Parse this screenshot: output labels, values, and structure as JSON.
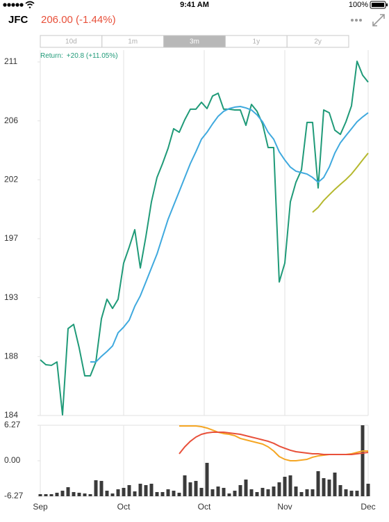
{
  "status_bar": {
    "time": "9:41 AM",
    "battery": "100%"
  },
  "header": {
    "symbol": "JFC",
    "quote": "206.00 (-1.44%)"
  },
  "range_selector": {
    "options": [
      "10d",
      "1m",
      "3m",
      "1y",
      "2y"
    ],
    "selected": 2
  },
  "chart_data": [
    {
      "type": "line",
      "annotation": {
        "label": "Return:",
        "value": "+20.8 (+11.05%)"
      },
      "xlim": [
        0,
        59
      ],
      "ylim": [
        184,
        211
      ],
      "yticks": [
        184,
        {
          "value": 188.5,
          "label": "188"
        },
        193,
        {
          "value": 197.5,
          "label": "197"
        },
        202,
        {
          "value": 206.5,
          "label": "206"
        },
        211
      ],
      "series": [
        {
          "color": "#1f9a78",
          "values": [
            188.25,
            187.88,
            187.83,
            188.09,
            184.05,
            190.64,
            190.96,
            189.16,
            187.03,
            187.03,
            188.09,
            191.39,
            192.88,
            192.18,
            192.88,
            195.64,
            196.86,
            198.19,
            195.27,
            197.66,
            200.32,
            202.18,
            203.24,
            204.41,
            205.9,
            205.63,
            206.59,
            207.39,
            207.39,
            207.92,
            207.44,
            208.4,
            208.61,
            207.39,
            207.39,
            207.33,
            207.33,
            206.16,
            207.76,
            207.23,
            206.27,
            204.46,
            204.46,
            194.2,
            195.64,
            200.32,
            201.81,
            202.76,
            206.38,
            206.38,
            201.38,
            207.33,
            207.12,
            205.79,
            205.47,
            206.43,
            207.65,
            211.05,
            209.99,
            209.46
          ]
        },
        {
          "color": "#3fa9de",
          "values": [
            null,
            null,
            null,
            null,
            null,
            null,
            null,
            null,
            null,
            188.09,
            188.09,
            188.52,
            188.89,
            189.31,
            190.32,
            190.75,
            191.28,
            192.34,
            193.14,
            194.2,
            195.27,
            196.33,
            197.66,
            198.99,
            200.05,
            201.11,
            202.18,
            203.24,
            204.14,
            205.1,
            205.63,
            206.27,
            206.85,
            207.23,
            207.44,
            207.55,
            207.6,
            207.49,
            207.33,
            206.96,
            206.43,
            205.63,
            205.1,
            204.14,
            203.51,
            202.97,
            202.66,
            202.55,
            202.44,
            202.18,
            201.81,
            202.18,
            202.97,
            204.04,
            204.83,
            205.37,
            205.9,
            206.43,
            206.8,
            207.12
          ]
        },
        {
          "color": "#b5b82e",
          "values": [
            null,
            null,
            null,
            null,
            null,
            null,
            null,
            null,
            null,
            null,
            null,
            null,
            null,
            null,
            null,
            null,
            null,
            null,
            null,
            null,
            null,
            null,
            null,
            null,
            null,
            null,
            null,
            null,
            null,
            null,
            null,
            null,
            null,
            null,
            null,
            null,
            null,
            null,
            null,
            null,
            null,
            null,
            null,
            null,
            null,
            null,
            null,
            null,
            null,
            199.52,
            199.89,
            200.42,
            200.85,
            201.27,
            201.65,
            202.02,
            202.44,
            202.97,
            203.51,
            204.04
          ]
        }
      ]
    },
    {
      "type": "combo",
      "xlim": [
        0,
        59
      ],
      "ylim": [
        -6.27,
        6.27
      ],
      "yticks": [
        -6.27,
        {
          "value": 0,
          "label": "0.00"
        },
        6.27
      ],
      "xticks": [
        {
          "value": 0,
          "label": "Sep"
        },
        {
          "value": 15,
          "label": "Oct"
        },
        {
          "value": 29.5,
          "label": "Oct"
        },
        {
          "value": 44,
          "label": "Nov"
        },
        {
          "value": 59,
          "label": "Dec"
        }
      ],
      "series": [
        {
          "type": "bar",
          "color": "#3a3a3a",
          "values": [
            -5.9,
            -5.9,
            -5.9,
            -5.65,
            -5.29,
            -4.67,
            -5.53,
            -5.65,
            -5.78,
            -5.9,
            -3.44,
            -3.56,
            -5.29,
            -5.78,
            -5.04,
            -4.79,
            -4.3,
            -5.41,
            -4.06,
            -4.3,
            -4.06,
            -5.53,
            -5.53,
            -5.04,
            -5.29,
            -5.65,
            -2.58,
            -3.81,
            -3.56,
            -4.79,
            -0.37,
            -5.04,
            -4.55,
            -4.79,
            -5.78,
            -5.29,
            -4.3,
            -3.32,
            -5.04,
            -5.53,
            -4.79,
            -5.04,
            -4.55,
            -3.81,
            -2.83,
            -2.58,
            -4.55,
            -5.53,
            -5.04,
            -5.04,
            -1.84,
            -3.07,
            -3.32,
            -2.09,
            -4.3,
            -5.04,
            -5.29,
            -5.29,
            6.27,
            -4.06
          ]
        },
        {
          "type": "line",
          "color": "#f5a623",
          "values": [
            null,
            null,
            null,
            null,
            null,
            null,
            null,
            null,
            null,
            null,
            null,
            null,
            null,
            null,
            null,
            null,
            null,
            null,
            null,
            null,
            null,
            null,
            null,
            null,
            null,
            6.15,
            6.15,
            6.15,
            6.15,
            6.02,
            5.78,
            5.41,
            5.04,
            4.8,
            4.67,
            4.43,
            3.94,
            3.69,
            3.44,
            3.2,
            2.95,
            2.46,
            1.72,
            0.74,
            0.25,
            0,
            0,
            0.12,
            0.25,
            0.62,
            0.86,
            0.98,
            1.11,
            1.11,
            1.11,
            1.11,
            1.23,
            1.48,
            1.72,
            1.72
          ]
        },
        {
          "type": "line",
          "color": "#e8503a",
          "values": [
            null,
            null,
            null,
            null,
            null,
            null,
            null,
            null,
            null,
            null,
            null,
            null,
            null,
            null,
            null,
            null,
            null,
            null,
            null,
            null,
            null,
            null,
            null,
            null,
            null,
            1.23,
            2.46,
            3.44,
            4.18,
            4.67,
            4.92,
            5.04,
            5.04,
            5.04,
            4.92,
            4.8,
            4.67,
            4.43,
            4.18,
            3.94,
            3.69,
            3.44,
            3.08,
            2.58,
            2.21,
            1.85,
            1.6,
            1.48,
            1.35,
            1.23,
            1.23,
            1.11,
            1.11,
            1.11,
            1.11,
            1.11,
            1.11,
            1.23,
            1.35,
            1.48
          ]
        }
      ]
    }
  ]
}
